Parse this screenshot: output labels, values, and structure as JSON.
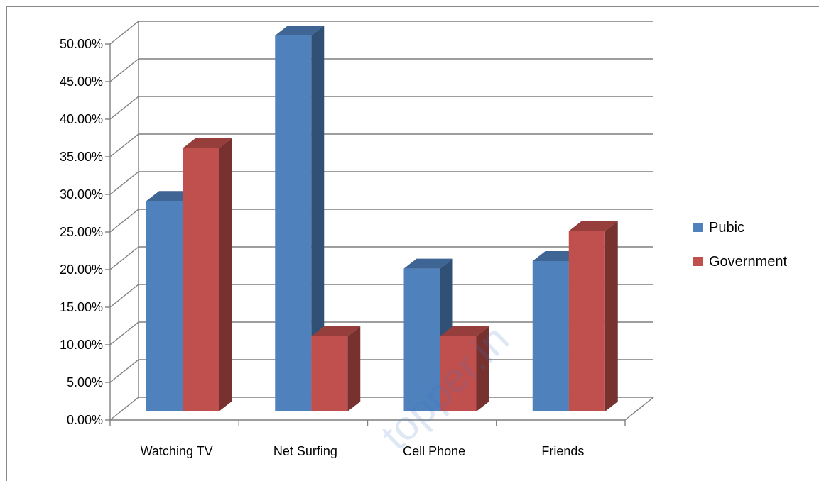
{
  "chart_data": {
    "type": "bar",
    "style": "3d-clustered-column",
    "categories": [
      "Watching TV",
      "Net Surfing",
      "Cell Phone",
      "Friends"
    ],
    "series": [
      {
        "name": "Pubic",
        "values": [
          0.28,
          0.5,
          0.19,
          0.2
        ],
        "color": "#4f81bd"
      },
      {
        "name": "Government",
        "values": [
          0.35,
          0.1,
          0.1,
          0.24
        ],
        "color": "#c0504d"
      }
    ],
    "ylim": [
      0,
      0.5
    ],
    "ytick_step": 0.05,
    "ytick_labels": [
      "0.00%",
      "5.00%",
      "10.00%",
      "15.00%",
      "20.00%",
      "25.00%",
      "30.00%",
      "35.00%",
      "40.00%",
      "45.00%",
      "50.00%"
    ],
    "grid": true,
    "legend_position": "right"
  },
  "watermark": "topper.in"
}
